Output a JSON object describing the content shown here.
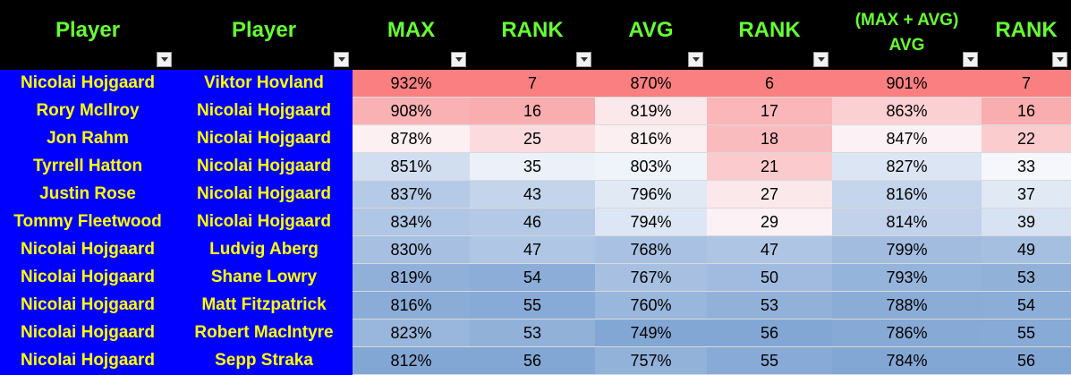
{
  "columns": [
    {
      "label": "Player"
    },
    {
      "label": "Player"
    },
    {
      "label": "MAX"
    },
    {
      "label": "RANK"
    },
    {
      "label": "AVG"
    },
    {
      "label": "RANK"
    },
    {
      "label": "(MAX + AVG)",
      "label2": "AVG"
    },
    {
      "label": "RANK"
    }
  ],
  "colors": {
    "header_bg": "#000000",
    "header_text": "#66ff33",
    "name_bg": "#0000ff",
    "name_text": "#ffff00",
    "scale_high": "#f8696b",
    "scale_mid": "#fcfcff",
    "scale_low": "#5a8ac6"
  },
  "rows": [
    {
      "player1": "Nicolai Hojgaard",
      "player2": "Viktor Hovland",
      "max": "932%",
      "max_rank": "7",
      "avg": "870%",
      "avg_rank": "6",
      "combo": "901%",
      "combo_rank": "7"
    },
    {
      "player1": "Rory McIlroy",
      "player2": "Nicolai Hojgaard",
      "max": "908%",
      "max_rank": "16",
      "avg": "819%",
      "avg_rank": "17",
      "combo": "863%",
      "combo_rank": "16"
    },
    {
      "player1": "Jon Rahm",
      "player2": "Nicolai Hojgaard",
      "max": "878%",
      "max_rank": "25",
      "avg": "816%",
      "avg_rank": "18",
      "combo": "847%",
      "combo_rank": "22"
    },
    {
      "player1": "Tyrrell Hatton",
      "player2": "Nicolai Hojgaard",
      "max": "851%",
      "max_rank": "35",
      "avg": "803%",
      "avg_rank": "21",
      "combo": "827%",
      "combo_rank": "33"
    },
    {
      "player1": "Justin Rose",
      "player2": "Nicolai Hojgaard",
      "max": "837%",
      "max_rank": "43",
      "avg": "796%",
      "avg_rank": "27",
      "combo": "816%",
      "combo_rank": "37"
    },
    {
      "player1": "Tommy Fleetwood",
      "player2": "Nicolai Hojgaard",
      "max": "834%",
      "max_rank": "46",
      "avg": "794%",
      "avg_rank": "29",
      "combo": "814%",
      "combo_rank": "39"
    },
    {
      "player1": "Nicolai Hojgaard",
      "player2": "Ludvig Aberg",
      "max": "830%",
      "max_rank": "47",
      "avg": "768%",
      "avg_rank": "47",
      "combo": "799%",
      "combo_rank": "49"
    },
    {
      "player1": "Nicolai Hojgaard",
      "player2": "Shane Lowry",
      "max": "819%",
      "max_rank": "54",
      "avg": "767%",
      "avg_rank": "50",
      "combo": "793%",
      "combo_rank": "53"
    },
    {
      "player1": "Nicolai Hojgaard",
      "player2": "Matt Fitzpatrick",
      "max": "816%",
      "max_rank": "55",
      "avg": "760%",
      "avg_rank": "53",
      "combo": "788%",
      "combo_rank": "54"
    },
    {
      "player1": "Nicolai Hojgaard",
      "player2": "Robert MacIntyre",
      "max": "823%",
      "max_rank": "53",
      "avg": "749%",
      "avg_rank": "56",
      "combo": "786%",
      "combo_rank": "55"
    },
    {
      "player1": "Nicolai Hojgaard",
      "player2": "Sepp Straka",
      "max": "812%",
      "max_rank": "56",
      "avg": "757%",
      "avg_rank": "55",
      "combo": "784%",
      "combo_rank": "56"
    }
  ]
}
